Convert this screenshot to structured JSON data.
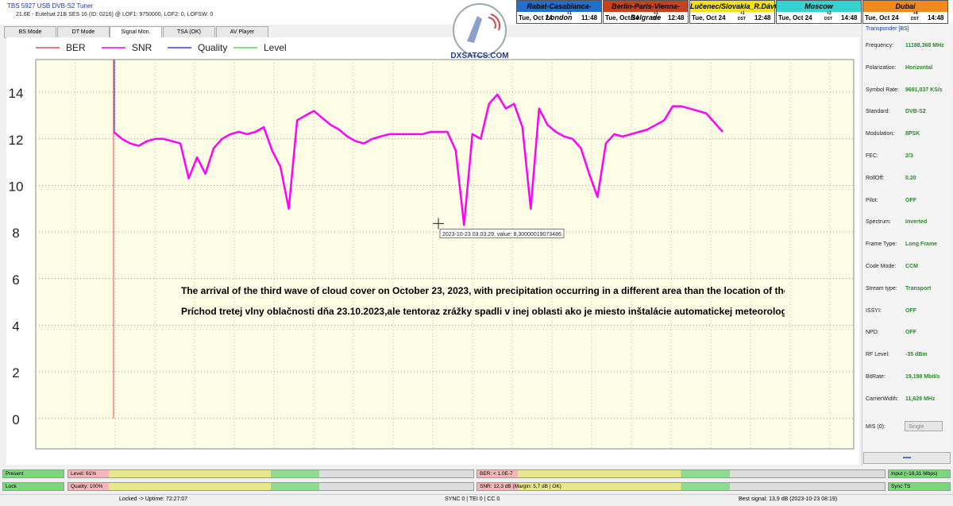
{
  "header": {
    "title": "TBS 5927 USB DVB-S2 Tuner",
    "subtitle": "21.6E - Eutelsat 21B  SES 16 (ID: 0216) @ LOF1: 9750000, LOF2: 0, LOFSW: 0"
  },
  "clocks": [
    {
      "name": "Rabat-Casablanca-London",
      "color": "#1e6fd0",
      "text": "#000",
      "date": "Tue, Oct 24",
      "offset": "+1",
      "dst": "",
      "time": "11:48"
    },
    {
      "name": "Berlin-Paris-Vienna-Belgrade",
      "color": "#c8401e",
      "text": "#000",
      "date": "Tue, Oct 24",
      "offset": "+1",
      "dst": "DST",
      "time": "12:48"
    },
    {
      "name": "Lučenec/Slovakia_R.Dávid",
      "color": "#f2e21a",
      "text": "#000",
      "date": "Tue, Oct 24",
      "offset": "+1",
      "dst": "DST",
      "time": "12:48"
    },
    {
      "name": "Moscow",
      "color": "#35d3d0",
      "text": "#000",
      "date": "Tue, Oct 24",
      "offset": "+3",
      "dst": "DST",
      "time": "14:48"
    },
    {
      "name": "Dubai",
      "color": "#f08a1c",
      "text": "#000",
      "date": "Tue, Oct 24",
      "offset": "+4",
      "dst": "DST",
      "time": "14:48"
    }
  ],
  "tabs": [
    "BS Mode",
    "DT Mode",
    "Signal Mon.",
    "TSA (OK)",
    "AV Player"
  ],
  "logo": "DXSATCS.COM",
  "chart_data": {
    "type": "line",
    "series": [
      {
        "name": "BER",
        "color": "#e05050"
      },
      {
        "name": "SNR",
        "color": "#ff00ff",
        "values": [
          12.3,
          12.0,
          11.8,
          11.7,
          11.9,
          12.0,
          12.0,
          11.9,
          11.8,
          10.3,
          11.2,
          10.5,
          11.6,
          12.0,
          12.2,
          12.3,
          12.2,
          12.3,
          12.5,
          11.5,
          10.8,
          9.0,
          12.8,
          13.0,
          13.2,
          12.9,
          12.6,
          12.4,
          12.1,
          11.9,
          11.8,
          12.0,
          12.1,
          12.2,
          12.2,
          12.2,
          12.2,
          12.2,
          12.3,
          12.3,
          12.3,
          11.5,
          8.3,
          12.2,
          12.0,
          13.5,
          13.9,
          13.3,
          13.5,
          12.5,
          9.0,
          13.3,
          12.6,
          12.3,
          12.1,
          12.0,
          11.6,
          10.5,
          9.5,
          11.8,
          12.2,
          12.1,
          12.2,
          12.3,
          12.4,
          12.6,
          12.8,
          13.4,
          13.4,
          13.3,
          13.2,
          13.1,
          12.7,
          12.3
        ]
      },
      {
        "name": "Quality",
        "color": "#3a3aff"
      },
      {
        "name": "Level",
        "color": "#5ad65a"
      }
    ],
    "ylim": [
      -1.3,
      15.4
    ],
    "yticks": [
      0,
      2,
      4,
      6,
      8,
      10,
      12,
      14
    ],
    "grid": true,
    "tooltip": "2023-10-23 03.03.29, value: 8,30000019073486",
    "annotations": [
      "The arrival of the third wave of cloud cover on October 23, 2023, with precipitation occurring in a different area than the location of the installation of the automatic meteorological station.",
      "Príchod tretej vlny oblačnosti dňa 23.10.2023,ale tentoraz zrážky spadli v inej oblasti ako je miesto inštalácie automatickej meteorologickej stanice"
    ]
  },
  "transponder": {
    "title": "Transponder [BS]",
    "fields": [
      [
        "Frequency:",
        "11188,368 MHz"
      ],
      [
        "Polarization:",
        "Horizontal"
      ],
      [
        "Symbol Rate:",
        "9691,037 KS/s"
      ],
      [
        "Standard:",
        "DVB-S2"
      ],
      [
        "Modulation:",
        "8PSK"
      ],
      [
        "FEC:",
        "2/3"
      ],
      [
        "RollOff:",
        "0.20"
      ],
      [
        "Pilot:",
        "OFF"
      ],
      [
        "Spectrum:",
        "Inverted"
      ],
      [
        "Frame Type:",
        "Long Frame"
      ],
      [
        "Code Mode:",
        "CCM"
      ],
      [
        "Stream type:",
        "Transport"
      ],
      [
        "ISSYI:",
        "OFF"
      ],
      [
        "NPD:",
        "OFF"
      ],
      [
        "RF Level:",
        "-35 dBm"
      ],
      [
        "BitRate:",
        "19,198 Mbit/s"
      ],
      [
        "CarrierWidth:",
        "11,629 MHz"
      ]
    ],
    "mis_label": "MIS (0):",
    "mis_value": "Single"
  },
  "status": [
    [
      "Present",
      "Level: 61%",
      "BER: < 1.0E-7",
      "Input (~18,31 Mbps)"
    ],
    [
      "Lock",
      "Quality: 100%",
      "SNR: 12,3 dB (Margin: 5,7 dB | OK)",
      "Sync TS"
    ]
  ],
  "footer": [
    "Locked -> Uptime: 72:27:07",
    "SYNC 0 | TEI 0 | CC 0",
    "Best signal: 13,9 dB (2023-10-23 08:19)"
  ]
}
